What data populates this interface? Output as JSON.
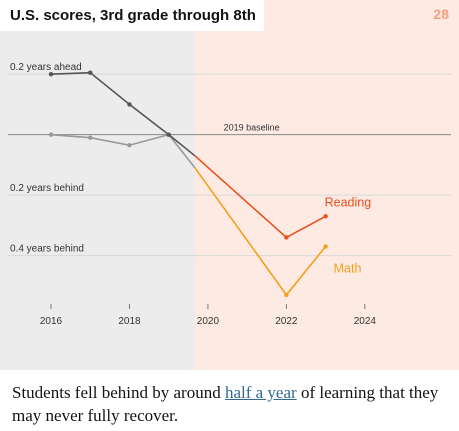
{
  "page": {
    "title": "U.S. scores, 3rd grade through 8th",
    "page_number": "28"
  },
  "caption": {
    "before": "Students fell behind by around ",
    "link": "half a year",
    "after": " of learning that they may never fully recover."
  },
  "colors": {
    "left_panel_bg": "#ececec",
    "right_panel_bg": "#fdebe3",
    "reading": "#e8501e",
    "math": "#f59f1b",
    "pre_reading": "#555555",
    "pre_math": "#999999",
    "baseline": "#888888",
    "page_number": "#f3a080"
  },
  "chart_data": {
    "type": "line",
    "title": "U.S. scores, 3rd grade through 8th",
    "xlabel": "",
    "ylabel": "",
    "xlim": [
      2014.7,
      2026.4
    ],
    "ylim": [
      -0.58,
      0.28
    ],
    "x_ticks": [
      "2016",
      "2018",
      "2020",
      "2022",
      "2024"
    ],
    "x_tick_values": [
      2016,
      2018,
      2020,
      2022,
      2024
    ],
    "y_gridlines": [
      {
        "value": 0.2,
        "label": "0.2 years ahead"
      },
      {
        "value": -0.2,
        "label": "0.2 years behind"
      },
      {
        "value": -0.4,
        "label": "0.4 years behind"
      }
    ],
    "baseline": {
      "value": 0,
      "label": "2019 baseline"
    },
    "shaded_from_x": 2019.67,
    "series": [
      {
        "name": "Reading",
        "points": [
          {
            "x": 2016,
            "y": 0.2
          },
          {
            "x": 2017,
            "y": 0.205
          },
          {
            "x": 2018,
            "y": 0.1
          },
          {
            "x": 2019,
            "y": 0.0
          },
          {
            "x": 2019.67,
            "y": -0.07
          },
          {
            "x": 2022,
            "y": -0.34
          },
          {
            "x": 2023,
            "y": -0.27
          }
        ]
      },
      {
        "name": "Math",
        "points": [
          {
            "x": 2016,
            "y": 0.0
          },
          {
            "x": 2017,
            "y": -0.01
          },
          {
            "x": 2018,
            "y": -0.035
          },
          {
            "x": 2019,
            "y": 0.0
          },
          {
            "x": 2019.67,
            "y": -0.11
          },
          {
            "x": 2022,
            "y": -0.53
          },
          {
            "x": 2023,
            "y": -0.37
          }
        ]
      }
    ]
  }
}
